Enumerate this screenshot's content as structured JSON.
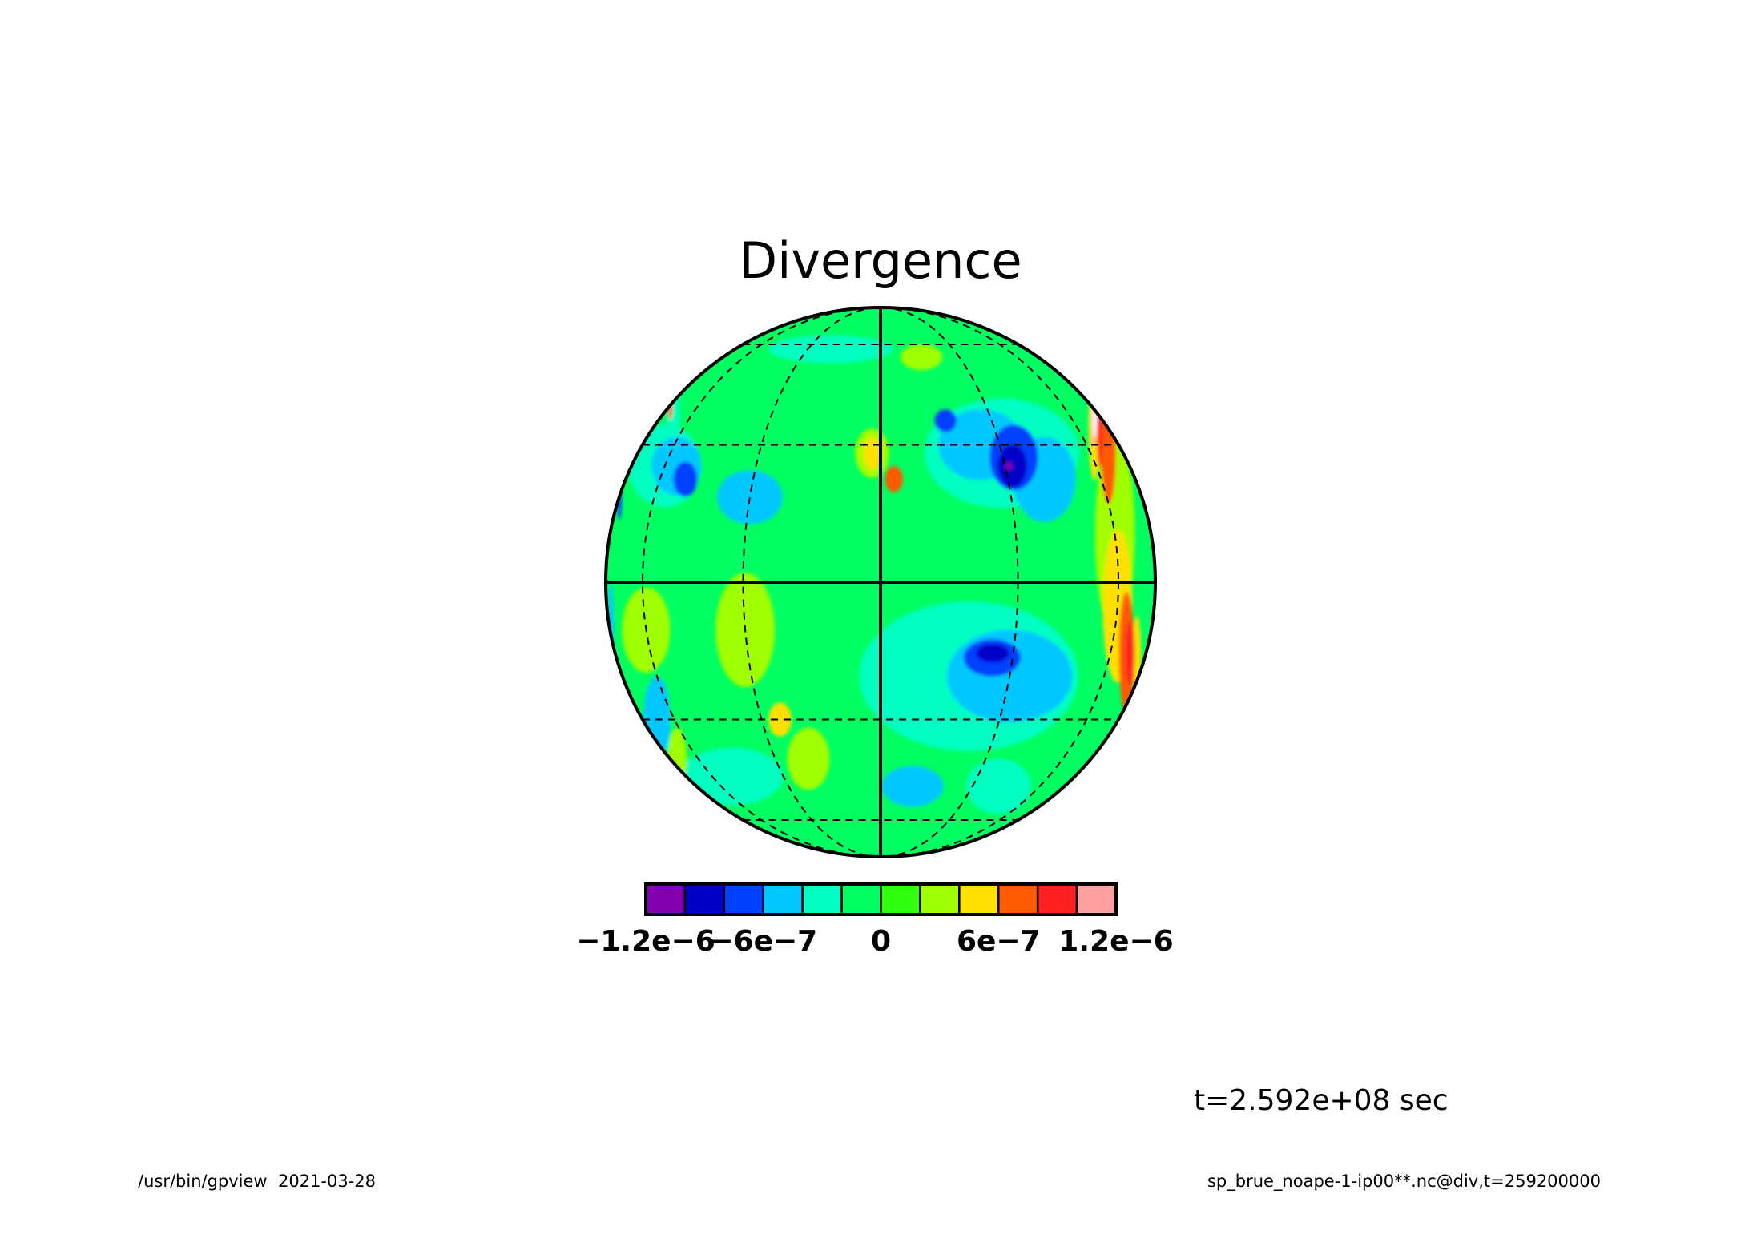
{
  "title": "Divergence",
  "time_label": "t=2.592e+08 sec",
  "footer": {
    "left_text": "/usr/bin/gpview  2021-03-28",
    "right_text": "sp_brue_noape-1-ip00**.nc@div,t=259200000"
  },
  "projection": "orthographic",
  "colorbar": {
    "colors": [
      "#8000b0",
      "#0000c8",
      "#0040ff",
      "#00c8ff",
      "#00ffc0",
      "#00ff60",
      "#30ff10",
      "#a0ff00",
      "#ffe000",
      "#ff5a00",
      "#ff2020",
      "#ffa0a0"
    ],
    "bounds": [
      -1.2e-06,
      -1e-06,
      -8e-07,
      -6e-07,
      -4e-07,
      -2e-07,
      0,
      2e-07,
      4e-07,
      6e-07,
      8e-07,
      1e-06,
      1.2e-06
    ],
    "tick_labels": [
      {
        "text": "−1.2e−6",
        "value": -1.2e-06
      },
      {
        "text": "−6e−7",
        "value": -6e-07
      },
      {
        "text": "0",
        "value": 0
      },
      {
        "text": "6e−7",
        "value": 6e-07
      },
      {
        "text": "1.2e−6",
        "value": 1.2e-06
      }
    ]
  },
  "map_data": {
    "background_color": "#00ff60",
    "features": [
      {
        "kind": "cyan",
        "color": "#00ffc0",
        "lon": -60,
        "lat": 25,
        "rlon": 14,
        "rlat": 10
      },
      {
        "kind": "cyan",
        "color": "#00ffc0",
        "lon": 30,
        "lat": 28,
        "rlon": 25,
        "rlat": 14
      },
      {
        "kind": "cyan",
        "color": "#00ffc0",
        "lon": 20,
        "lat": -20,
        "rlon": 30,
        "rlat": 16
      },
      {
        "kind": "cyan",
        "color": "#00ffc0",
        "lon": -50,
        "lat": -45,
        "rlon": 20,
        "rlat": 8
      },
      {
        "kind": "cyan",
        "color": "#00ffc0",
        "lon": -20,
        "lat": 58,
        "rlon": 25,
        "rlat": 6
      },
      {
        "kind": "cyan",
        "color": "#00ffc0",
        "lon": 40,
        "lat": -48,
        "rlon": 15,
        "rlat": 8
      },
      {
        "kind": "cyan",
        "color": "#00ffc0",
        "lon": -80,
        "lat": 40,
        "rlon": 8,
        "rlat": 10
      },
      {
        "kind": "blue",
        "color": "#00c8ff",
        "lon": 25,
        "lat": 30,
        "rlon": 12,
        "rlat": 9
      },
      {
        "kind": "blue",
        "color": "#00c8ff",
        "lon": 40,
        "lat": 22,
        "rlon": 10,
        "rlat": 10
      },
      {
        "kind": "blue",
        "color": "#00c8ff",
        "lon": 30,
        "lat": -20,
        "rlon": 18,
        "rlat": 10
      },
      {
        "kind": "blue",
        "color": "#00c8ff",
        "lon": -55,
        "lat": 25,
        "rlon": 9,
        "rlat": 7
      },
      {
        "kind": "blue",
        "color": "#00c8ff",
        "lon": -70,
        "lat": -30,
        "rlon": 8,
        "rlat": 10
      },
      {
        "kind": "blue",
        "color": "#00c8ff",
        "lon": -30,
        "lat": 18,
        "rlon": 8,
        "rlat": 6
      },
      {
        "kind": "blue",
        "color": "#00c8ff",
        "lon": 10,
        "lat": -48,
        "rlon": 10,
        "rlat": 6
      },
      {
        "kind": "blue",
        "color": "#00c8ff",
        "lon": -85,
        "lat": -10,
        "rlon": 5,
        "rlat": 10
      },
      {
        "kind": "deepblue",
        "color": "#0040ff",
        "lon": 33,
        "lat": 27,
        "rlon": 7,
        "rlat": 8
      },
      {
        "kind": "deepblue",
        "color": "#0040ff",
        "lon": -50,
        "lat": 22,
        "rlon": 4,
        "rlat": 4
      },
      {
        "kind": "deepblue",
        "color": "#0040ff",
        "lon": 25,
        "lat": -16,
        "rlon": 7,
        "rlat": 4
      },
      {
        "kind": "deepblue",
        "color": "#0040ff",
        "lon": 17,
        "lat": 36,
        "rlon": 3,
        "rlat": 3
      },
      {
        "kind": "deepblue",
        "color": "#0040ff",
        "lon": -88,
        "lat": 18,
        "rlon": 3,
        "rlat": 5
      },
      {
        "kind": "navy",
        "color": "#0000c8",
        "lon": 32,
        "lat": 25,
        "rlon": 4,
        "rlat": 5
      },
      {
        "kind": "navy",
        "color": "#0000c8",
        "lon": 25,
        "lat": -15,
        "rlon": 4,
        "rlat": 2
      },
      {
        "kind": "purple",
        "color": "#8000b0",
        "lon": 31,
        "lat": 25,
        "rlon": 1,
        "rlat": 1
      },
      {
        "kind": "lime",
        "color": "#a0ff00",
        "lon": -30,
        "lat": -10,
        "rlon": 7,
        "rlat": 12
      },
      {
        "kind": "lime",
        "color": "#a0ff00",
        "lon": -2,
        "lat": 28,
        "rlon": 4,
        "rlat": 6
      },
      {
        "kind": "lime",
        "color": "#a0ff00",
        "lon": -60,
        "lat": -10,
        "rlon": 9,
        "rlat": 9
      },
      {
        "kind": "lime",
        "color": "#a0ff00",
        "lon": 60,
        "lat": 10,
        "rlon": 10,
        "rlat": 22
      },
      {
        "kind": "lime",
        "color": "#a0ff00",
        "lon": -20,
        "lat": -40,
        "rlon": 6,
        "rlat": 8
      },
      {
        "kind": "lime",
        "color": "#a0ff00",
        "lon": 15,
        "lat": 55,
        "rlon": 8,
        "rlat": 5
      },
      {
        "kind": "lime",
        "color": "#a0ff00",
        "lon": -75,
        "lat": -40,
        "rlon": 8,
        "rlat": 8
      },
      {
        "kind": "yellow",
        "color": "#ffe000",
        "lon": 60,
        "lat": -5,
        "rlon": 7,
        "rlat": 16
      },
      {
        "kind": "yellow",
        "color": "#ffe000",
        "lon": -2,
        "lat": 28,
        "rlon": 2,
        "rlat": 4
      },
      {
        "kind": "yellow",
        "color": "#ffe000",
        "lon": -25,
        "lat": -30,
        "rlon": 3,
        "rlat": 4
      },
      {
        "kind": "yellow",
        "color": "#ffe000",
        "lon": 72,
        "lat": 35,
        "rlon": 6,
        "rlat": 16
      },
      {
        "kind": "yellow",
        "color": "#ffe000",
        "lon": 75,
        "lat": -15,
        "rlon": 4,
        "rlat": 8
      },
      {
        "kind": "orange",
        "color": "#ff5a00",
        "lon": 68,
        "lat": -15,
        "rlon": 5,
        "rlat": 13
      },
      {
        "kind": "orange",
        "color": "#ff5a00",
        "lon": 3,
        "lat": 22,
        "rlon": 2,
        "rlat": 3
      },
      {
        "kind": "orange",
        "color": "#ff5a00",
        "lon": 70,
        "lat": 28,
        "rlon": 6,
        "rlat": 13
      },
      {
        "kind": "orange",
        "color": "#ff5a00",
        "lon": -88,
        "lat": 40,
        "rlon": 2,
        "rlat": 4
      },
      {
        "kind": "red",
        "color": "#ff2020",
        "lon": 77,
        "lat": 35,
        "rlon": 4,
        "rlat": 12
      },
      {
        "kind": "red",
        "color": "#ff2020",
        "lon": 70,
        "lat": -15,
        "rlon": 3,
        "rlat": 7
      },
      {
        "kind": "pink",
        "color": "#ffa0a0",
        "lon": 80,
        "lat": 38,
        "rlon": 2,
        "rlat": 10
      },
      {
        "kind": "white",
        "color": "#ffffff",
        "lon": 82,
        "lat": 38,
        "rlon": 1,
        "rlat": 7
      }
    ]
  }
}
